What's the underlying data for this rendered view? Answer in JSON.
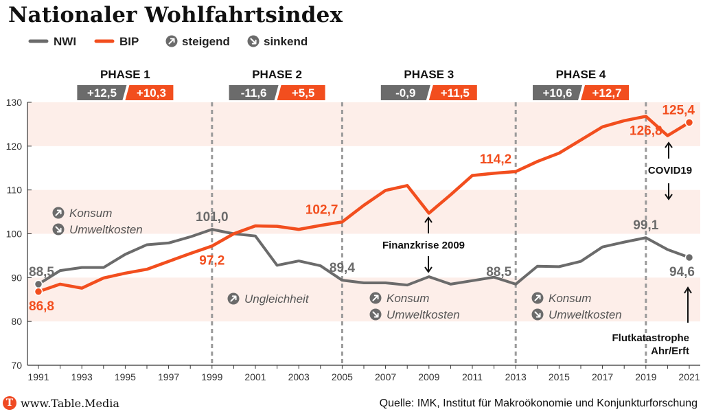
{
  "title": "Nationaler Wohlfahrtsindex",
  "colors": {
    "nwi": "#6b6b6b",
    "bip": "#f24e1e",
    "band": "#fdeee9",
    "grid": "#d9d9d9",
    "divider": "#9a9a9a",
    "annotation_icon": "#6b6b6b"
  },
  "legend": {
    "nwi": "NWI",
    "bip": "BIP",
    "rising": "steigend",
    "falling": "sinkend",
    "rising_icon": "arrow-up-right-icon",
    "falling_icon": "arrow-down-right-icon"
  },
  "chart_data": {
    "type": "line",
    "x": [
      1991,
      1992,
      1993,
      1994,
      1995,
      1996,
      1997,
      1998,
      1999,
      2000,
      2001,
      2002,
      2003,
      2004,
      2005,
      2006,
      2007,
      2008,
      2009,
      2010,
      2011,
      2012,
      2013,
      2014,
      2015,
      2016,
      2017,
      2018,
      2019,
      2020,
      2021
    ],
    "series": [
      {
        "name": "NWI",
        "values": [
          88.5,
          91.6,
          92.3,
          92.3,
          95.3,
          97.5,
          97.9,
          99.3,
          101.0,
          100.0,
          99.5,
          92.8,
          93.8,
          92.7,
          89.4,
          88.8,
          88.8,
          88.3,
          90.2,
          88.5,
          89.3,
          90.1,
          88.5,
          92.6,
          92.5,
          93.7,
          97.0,
          98.1,
          99.1,
          96.4,
          94.6
        ]
      },
      {
        "name": "BIP",
        "values": [
          86.8,
          88.5,
          87.6,
          89.9,
          91.0,
          91.9,
          93.7,
          95.5,
          97.2,
          100.0,
          101.8,
          101.7,
          101.0,
          101.9,
          102.7,
          106.5,
          109.9,
          111.0,
          104.7,
          108.9,
          113.3,
          113.8,
          114.2,
          116.5,
          118.4,
          121.4,
          124.4,
          125.8,
          126.8,
          122.4,
          125.4
        ]
      }
    ],
    "xlim": [
      1991,
      2021
    ],
    "ylim": [
      70,
      130
    ],
    "y_ticks": [
      70,
      80,
      90,
      100,
      110,
      120,
      130
    ],
    "x_ticks": [
      1991,
      1993,
      1995,
      1997,
      1999,
      2001,
      2003,
      2005,
      2007,
      2009,
      2011,
      2013,
      2015,
      2017,
      2019,
      2021
    ],
    "bands": [
      [
        80,
        90
      ],
      [
        100,
        110
      ],
      [
        120,
        130
      ]
    ],
    "phase_dividers": [
      1999,
      2005,
      2013,
      2019
    ],
    "phases": [
      {
        "label": "PHASE 1",
        "nwi_change": "+12,5",
        "bip_change": "+10,3",
        "from": 1991,
        "to": 1999
      },
      {
        "label": "PHASE 2",
        "nwi_change": "-11,6",
        "bip_change": "+5,5",
        "from": 1999,
        "to": 2005
      },
      {
        "label": "PHASE 3",
        "nwi_change": "-0,9",
        "bip_change": "+11,5",
        "from": 2005,
        "to": 2013
      },
      {
        "label": "PHASE 4",
        "nwi_change": "+10,6",
        "bip_change": "+12,7",
        "from": 2013,
        "to": 2019
      }
    ],
    "value_labels": [
      {
        "series": "NWI",
        "year": 1991,
        "text": "88,5",
        "anchor": "above"
      },
      {
        "series": "BIP",
        "year": 1991,
        "text": "86,8",
        "anchor": "below"
      },
      {
        "series": "NWI",
        "year": 1999,
        "text": "101,0",
        "anchor": "above"
      },
      {
        "series": "BIP",
        "year": 1999,
        "text": "97,2",
        "anchor": "below"
      },
      {
        "series": "BIP",
        "year": 2005,
        "text": "102,7",
        "anchor": "above-left"
      },
      {
        "series": "NWI",
        "year": 2005,
        "text": "89,4",
        "anchor": "above"
      },
      {
        "series": "BIP",
        "year": 2013,
        "text": "114,2",
        "anchor": "above-left"
      },
      {
        "series": "NWI",
        "year": 2013,
        "text": "88,5",
        "anchor": "above-left"
      },
      {
        "series": "NWI",
        "year": 2019,
        "text": "99,1",
        "anchor": "above"
      },
      {
        "series": "BIP",
        "year": 2019,
        "text": "126,8",
        "anchor": "below"
      },
      {
        "series": "BIP",
        "year": 2021,
        "text": "125,4",
        "anchor": "above"
      },
      {
        "series": "NWI",
        "year": 2021,
        "text": "94,6",
        "anchor": "below"
      }
    ],
    "annotations": {
      "phase1": [
        {
          "icon": "arrow-up-right-icon",
          "text": "Konsum"
        },
        {
          "icon": "arrow-down-right-icon",
          "text": "Umweltkosten"
        }
      ],
      "phase2": [
        {
          "icon": "arrow-up-right-icon",
          "text": "Ungleichheit"
        }
      ],
      "phase3": [
        {
          "icon": "arrow-up-right-icon",
          "text": "Konsum"
        },
        {
          "icon": "arrow-down-right-icon",
          "text": "Umweltkosten"
        }
      ],
      "phase4": [
        {
          "icon": "arrow-up-right-icon",
          "text": "Konsum"
        },
        {
          "icon": "arrow-down-right-icon",
          "text": "Umweltkosten"
        }
      ],
      "finanzkrise": "Finanzkrise 2009",
      "covid": "COVID19",
      "flut_line1": "Flutkatastrophe",
      "flut_line2": "Ahr/Erft"
    }
  },
  "footer": {
    "logo_letter": "T",
    "site": "www.Table.Media",
    "source": "Quelle: IMK, Institut für Makroökonomie und Konjunkturforschung"
  }
}
